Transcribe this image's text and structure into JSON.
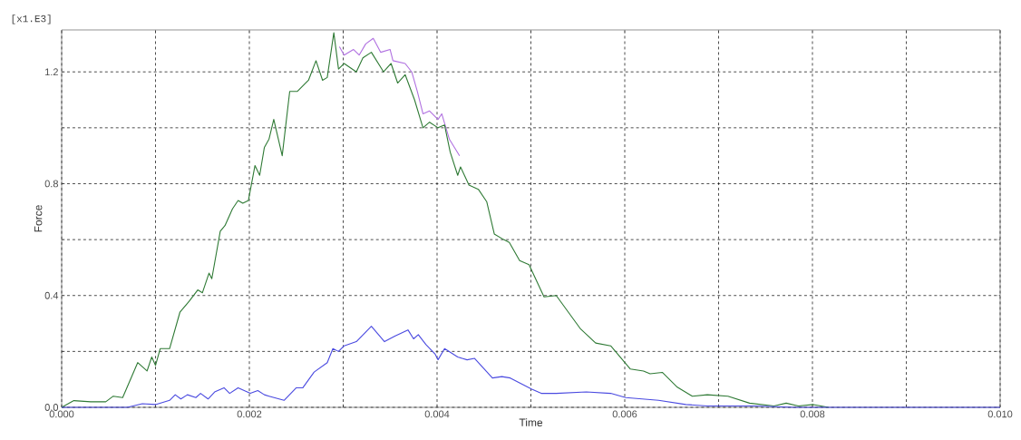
{
  "chart_data": {
    "type": "line",
    "xlabel": "Time",
    "ylabel": "Force",
    "annotations": [
      "[x1.E3]"
    ],
    "xlim": [
      0,
      0.01
    ],
    "ylim": [
      0,
      1.35
    ],
    "xticks": [
      {
        "value": 0,
        "label": "0.000"
      },
      {
        "value": 0.001,
        "label": null
      },
      {
        "value": 0.002,
        "label": "0.002"
      },
      {
        "value": 0.003,
        "label": null
      },
      {
        "value": 0.004,
        "label": "0.004"
      },
      {
        "value": 0.005,
        "label": null
      },
      {
        "value": 0.006,
        "label": "0.006"
      },
      {
        "value": 0.007,
        "label": null
      },
      {
        "value": 0.008,
        "label": "0.008"
      },
      {
        "value": 0.009,
        "label": null
      },
      {
        "value": 0.01,
        "label": "0.010"
      }
    ],
    "yticks": [
      {
        "value": 0,
        "label": "0.0"
      },
      {
        "value": 0.2,
        "label": null
      },
      {
        "value": 0.4,
        "label": "0.4"
      },
      {
        "value": 0.6,
        "label": null
      },
      {
        "value": 0.8,
        "label": "0.8"
      },
      {
        "value": 1.0,
        "label": null
      },
      {
        "value": 1.2,
        "label": "1.2"
      }
    ],
    "grid": true,
    "marker": "none",
    "line_style": "solid",
    "series": [
      {
        "color": "#b070e0",
        "x": [
          0.00296,
          0.00301,
          0.00311,
          0.00317,
          0.00324,
          0.00332,
          0.0034,
          0.0035,
          0.00353,
          0.00366,
          0.00373,
          0.00379,
          0.00385,
          0.00392,
          0.00401,
          0.00405,
          0.00413,
          0.00424
        ],
        "values": [
          1.29,
          1.26,
          1.28,
          1.26,
          1.3,
          1.32,
          1.27,
          1.28,
          1.24,
          1.23,
          1.2,
          1.13,
          1.05,
          1.06,
          1.03,
          1.05,
          0.96,
          0.9
        ]
      },
      {
        "color": "#2f7a35",
        "x": [
          0,
          0.00013,
          0.00031,
          0.00047,
          0.00055,
          0.00065,
          0.00081,
          0.00091,
          0.00096,
          0.001,
          0.00105,
          0.00115,
          0.00126,
          0.00136,
          0.00145,
          0.0015,
          0.00157,
          0.0016,
          0.00169,
          0.00174,
          0.00182,
          0.00188,
          0.00193,
          0.00199,
          0.00206,
          0.00211,
          0.00216,
          0.00221,
          0.00226,
          0.00235,
          0.00243,
          0.00251,
          0.00263,
          0.00271,
          0.00278,
          0.00283,
          0.0029,
          0.00295,
          0.00301,
          0.00314,
          0.00321,
          0.0033,
          0.00343,
          0.00351,
          0.00358,
          0.00366,
          0.00376,
          0.00385,
          0.00392,
          0.00401,
          0.00408,
          0.00414,
          0.00422,
          0.00425,
          0.00434,
          0.00444,
          0.00453,
          0.00461,
          0.00471,
          0.00477,
          0.00488,
          0.00498,
          0.00514,
          0.00527,
          0.00553,
          0.00569,
          0.00585,
          0.00606,
          0.0062,
          0.00627,
          0.0064,
          0.00656,
          0.00672,
          0.00688,
          0.0071,
          0.00733,
          0.00759,
          0.00772,
          0.00785,
          0.00801,
          0.00817
        ],
        "values": [
          0,
          0.024,
          0.02,
          0.02,
          0.04,
          0.035,
          0.16,
          0.13,
          0.18,
          0.15,
          0.21,
          0.21,
          0.34,
          0.38,
          0.42,
          0.41,
          0.48,
          0.46,
          0.63,
          0.65,
          0.71,
          0.74,
          0.73,
          0.74,
          0.865,
          0.83,
          0.93,
          0.96,
          1.03,
          0.9,
          1.13,
          1.13,
          1.17,
          1.24,
          1.17,
          1.18,
          1.34,
          1.21,
          1.23,
          1.2,
          1.25,
          1.27,
          1.2,
          1.23,
          1.16,
          1.19,
          1.1,
          1.0,
          1.02,
          1.0,
          1.01,
          0.913,
          0.83,
          0.86,
          0.795,
          0.78,
          0.735,
          0.62,
          0.6,
          0.59,
          0.525,
          0.51,
          0.395,
          0.4,
          0.28,
          0.23,
          0.22,
          0.137,
          0.13,
          0.12,
          0.125,
          0.072,
          0.04,
          0.045,
          0.04,
          0.015,
          0.005,
          0.015,
          0.005,
          0.01,
          0
        ]
      },
      {
        "color": "#4a4ae0",
        "x": [
          0,
          0.0007,
          0.00086,
          0.001,
          0.00115,
          0.00121,
          0.00127,
          0.00134,
          0.00143,
          0.00148,
          0.00156,
          0.00163,
          0.00173,
          0.00179,
          0.00188,
          0.00201,
          0.00209,
          0.00216,
          0.00221,
          0.00237,
          0.0025,
          0.00257,
          0.00269,
          0.00283,
          0.00289,
          0.00295,
          0.00301,
          0.00314,
          0.0033,
          0.00344,
          0.00355,
          0.00369,
          0.00375,
          0.0038,
          0.00388,
          0.00398,
          0.00401,
          0.00408,
          0.00422,
          0.00432,
          0.0044,
          0.00459,
          0.00469,
          0.00478,
          0.00501,
          0.00511,
          0.00527,
          0.00559,
          0.00585,
          0.00601,
          0.00636,
          0.00665,
          0.00688,
          0.0074,
          0.0078,
          0.01
        ],
        "values": [
          0,
          0,
          0.013,
          0.01,
          0.025,
          0.045,
          0.03,
          0.045,
          0.035,
          0.05,
          0.03,
          0.055,
          0.07,
          0.05,
          0.07,
          0.05,
          0.06,
          0.045,
          0.04,
          0.025,
          0.07,
          0.07,
          0.126,
          0.16,
          0.21,
          0.2,
          0.22,
          0.235,
          0.29,
          0.235,
          0.255,
          0.277,
          0.245,
          0.26,
          0.225,
          0.19,
          0.17,
          0.21,
          0.18,
          0.17,
          0.175,
          0.105,
          0.11,
          0.105,
          0.065,
          0.05,
          0.05,
          0.055,
          0.05,
          0.035,
          0.025,
          0.01,
          0.005,
          0.005,
          0,
          0
        ]
      }
    ]
  }
}
